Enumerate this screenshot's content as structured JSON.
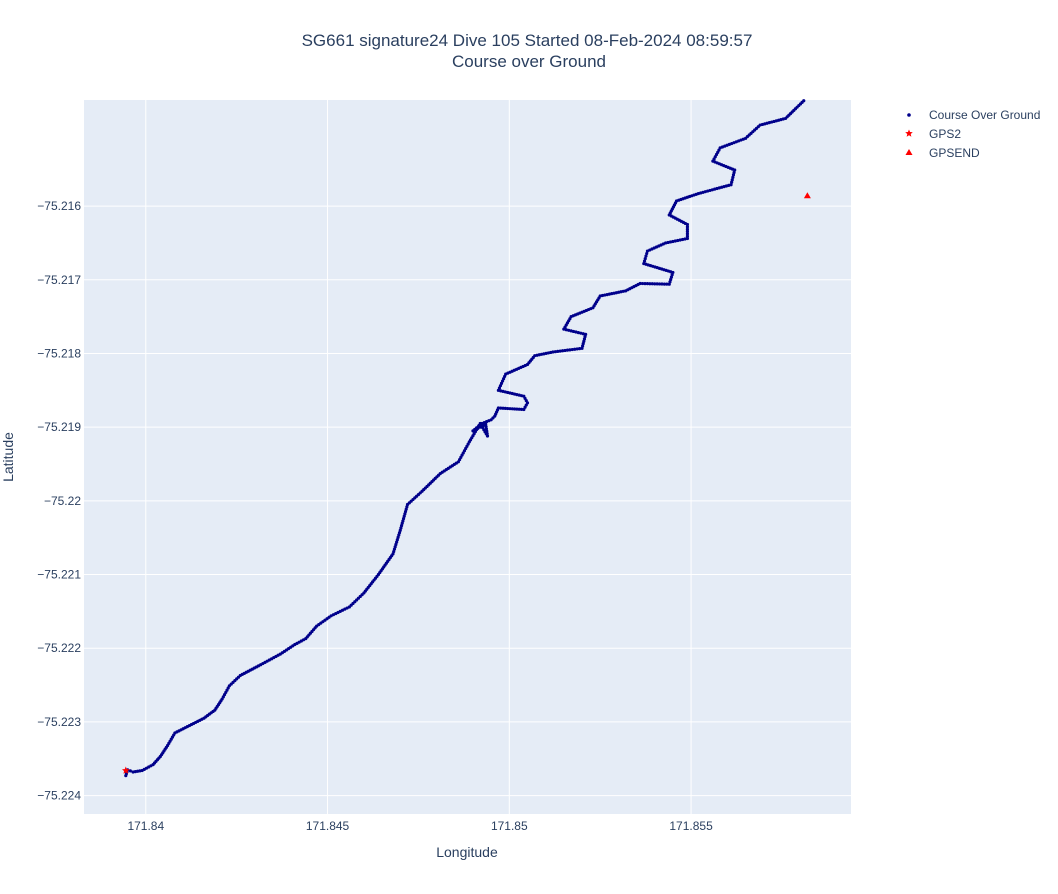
{
  "chart_data": {
    "type": "scatter",
    "title_line1": "SG661 signature24 Dive 105 Started 08-Feb-2024 08:59:57",
    "title_line2": "Course over Ground",
    "xlabel": "Longitude",
    "ylabel": "Latitude",
    "xlim": [
      171.8383,
      171.8594
    ],
    "ylim": [
      -75.22425,
      -75.21456
    ],
    "x_ticks": [
      171.84,
      171.845,
      171.85,
      171.855
    ],
    "x_tick_labels": [
      "171.84",
      "171.845",
      "171.85",
      "171.855"
    ],
    "y_ticks": [
      -75.216,
      -75.217,
      -75.218,
      -75.219,
      -75.22,
      -75.221,
      -75.222,
      -75.223,
      -75.224
    ],
    "y_tick_labels": [
      "−75.216",
      "−75.217",
      "−75.218",
      "−75.219",
      "−75.22",
      "−75.221",
      "−75.222",
      "−75.223",
      "−75.224"
    ],
    "grid": true,
    "legend_position": "top-right-outside",
    "colors": {
      "plot_background": "#e5ecf6",
      "grid": "#ffffff",
      "course": "#00008b",
      "gps": "#ff0000",
      "text": "#2a3f5f"
    },
    "series": [
      {
        "name": "Course Over Ground",
        "marker": "dot",
        "color": "#00008b",
        "path": [
          [
            171.83945,
            -75.22373
          ],
          [
            171.8395,
            -75.22365
          ],
          [
            171.83965,
            -75.22368
          ],
          [
            171.8399,
            -75.22366
          ],
          [
            171.8402,
            -75.22358
          ],
          [
            171.8404,
            -75.22347
          ],
          [
            171.8406,
            -75.22332
          ],
          [
            171.8408,
            -75.22315
          ],
          [
            171.8412,
            -75.22305
          ],
          [
            171.8416,
            -75.22295
          ],
          [
            171.8419,
            -75.22284
          ],
          [
            171.8421,
            -75.22269
          ],
          [
            171.8423,
            -75.22251
          ],
          [
            171.8426,
            -75.22237
          ],
          [
            171.8431,
            -75.22224
          ],
          [
            171.8437,
            -75.22208
          ],
          [
            171.8441,
            -75.22195
          ],
          [
            171.8444,
            -75.22187
          ],
          [
            171.8447,
            -75.2217
          ],
          [
            171.8451,
            -75.22156
          ],
          [
            171.8456,
            -75.22144
          ],
          [
            171.846,
            -75.22125
          ],
          [
            171.8464,
            -75.221
          ],
          [
            171.8468,
            -75.22072
          ],
          [
            171.847,
            -75.2204
          ],
          [
            171.8472,
            -75.22005
          ],
          [
            171.8476,
            -75.21987
          ],
          [
            171.8481,
            -75.21963
          ],
          [
            171.8486,
            -75.21947
          ],
          [
            171.8489,
            -75.2192
          ],
          [
            171.8492,
            -75.21895
          ],
          [
            171.8494,
            -75.21912
          ],
          [
            171.84935,
            -75.21896
          ],
          [
            171.8492,
            -75.219
          ],
          [
            171.849,
            -75.21905
          ],
          [
            171.84925,
            -75.21895
          ],
          [
            171.8495,
            -75.2189
          ],
          [
            171.8496,
            -75.21885
          ],
          [
            171.8497,
            -75.21874
          ],
          [
            171.8504,
            -75.21876
          ],
          [
            171.8505,
            -75.21867
          ],
          [
            171.8504,
            -75.21858
          ],
          [
            171.8497,
            -75.2185
          ],
          [
            171.8499,
            -75.21828
          ],
          [
            171.8505,
            -75.21815
          ],
          [
            171.8507,
            -75.21803
          ],
          [
            171.8512,
            -75.21798
          ],
          [
            171.852,
            -75.21793
          ],
          [
            171.8521,
            -75.21774
          ],
          [
            171.8515,
            -75.21767
          ],
          [
            171.8517,
            -75.2175
          ],
          [
            171.8523,
            -75.21738
          ],
          [
            171.8525,
            -75.21722
          ],
          [
            171.8532,
            -75.21715
          ],
          [
            171.8536,
            -75.21705
          ],
          [
            171.8544,
            -75.21706
          ],
          [
            171.8545,
            -75.2169
          ],
          [
            171.8537,
            -75.21678
          ],
          [
            171.8538,
            -75.21661
          ],
          [
            171.8543,
            -75.2165
          ],
          [
            171.8549,
            -75.21644
          ],
          [
            171.8549,
            -75.21625
          ],
          [
            171.8544,
            -75.21612
          ],
          [
            171.8546,
            -75.21593
          ],
          [
            171.8552,
            -75.21583
          ],
          [
            171.8561,
            -75.21571
          ],
          [
            171.8562,
            -75.21551
          ],
          [
            171.8556,
            -75.21539
          ],
          [
            171.8558,
            -75.21521
          ],
          [
            171.8565,
            -75.21508
          ],
          [
            171.8569,
            -75.2149
          ],
          [
            171.8576,
            -75.21481
          ],
          [
            171.8581,
            -75.21457
          ]
        ]
      },
      {
        "name": "GPS2",
        "marker": "star",
        "color": "#ff0000",
        "points": [
          [
            171.83945,
            -75.22366
          ]
        ]
      },
      {
        "name": "GPSEND",
        "marker": "triangle-up",
        "color": "#ff0000",
        "points": [
          [
            171.8582,
            -75.21586
          ]
        ]
      }
    ]
  }
}
